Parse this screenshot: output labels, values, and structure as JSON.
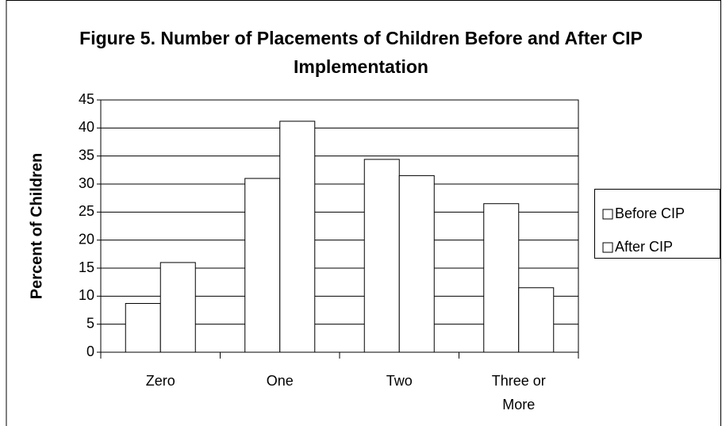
{
  "chart_data": {
    "type": "bar",
    "title": "Figure 5. Number of Placements of Children Before and After CIP Implementation",
    "y_label": "Percent of Children",
    "categories": [
      "Zero",
      "One",
      "Two",
      "Three or More"
    ],
    "series": [
      {
        "name": "Before CIP",
        "color": "#ffffff",
        "values": [
          8.7,
          31,
          34.4,
          26.5
        ]
      },
      {
        "name": "After CIP",
        "color": "#ffffff",
        "values": [
          16,
          41.2,
          31.5,
          11.5
        ]
      }
    ],
    "ylim": [
      0,
      45
    ],
    "yticks": [
      0,
      5,
      10,
      15,
      20,
      25,
      30,
      35,
      40,
      45
    ],
    "grid": true,
    "legend": "right"
  }
}
